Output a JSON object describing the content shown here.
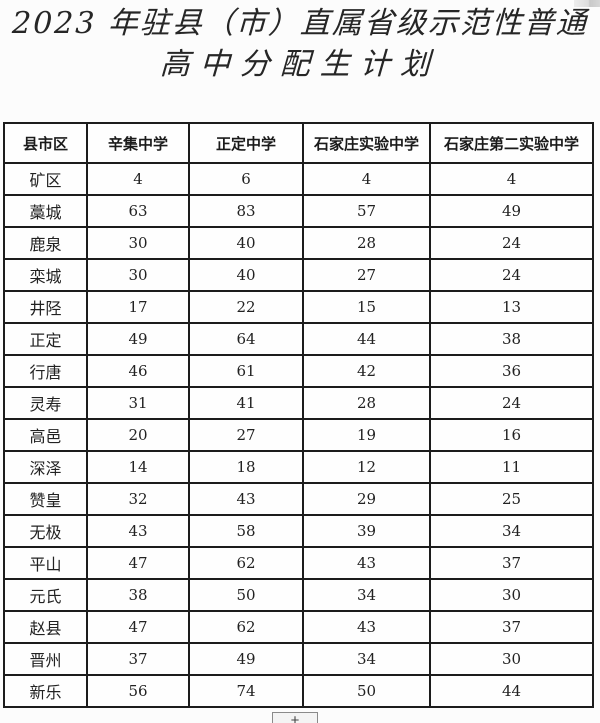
{
  "title": {
    "line1": "2023 年驻县（市）直属省级示范性普通",
    "line2": "高中分配生计划"
  },
  "table": {
    "columns": [
      "县市区",
      "辛集中学",
      "正定中学",
      "石家庄实验中学",
      "石家庄第二实验中学"
    ],
    "rows": [
      {
        "district": "矿区",
        "values": [
          4,
          6,
          4,
          4
        ]
      },
      {
        "district": "藁城",
        "values": [
          63,
          83,
          57,
          49
        ]
      },
      {
        "district": "鹿泉",
        "values": [
          30,
          40,
          28,
          24
        ]
      },
      {
        "district": "栾城",
        "values": [
          30,
          40,
          27,
          24
        ]
      },
      {
        "district": "井陉",
        "values": [
          17,
          22,
          15,
          13
        ]
      },
      {
        "district": "正定",
        "values": [
          49,
          64,
          44,
          38
        ]
      },
      {
        "district": "行唐",
        "values": [
          46,
          61,
          42,
          36
        ]
      },
      {
        "district": "灵寿",
        "values": [
          31,
          41,
          28,
          24
        ]
      },
      {
        "district": "高邑",
        "values": [
          20,
          27,
          19,
          16
        ]
      },
      {
        "district": "深泽",
        "values": [
          14,
          18,
          12,
          11
        ]
      },
      {
        "district": "赞皇",
        "values": [
          32,
          43,
          29,
          25
        ]
      },
      {
        "district": "无极",
        "values": [
          43,
          58,
          39,
          34
        ]
      },
      {
        "district": "平山",
        "values": [
          47,
          62,
          43,
          37
        ]
      },
      {
        "district": "元氏",
        "values": [
          38,
          50,
          34,
          30
        ]
      },
      {
        "district": "赵县",
        "values": [
          47,
          62,
          43,
          37
        ]
      },
      {
        "district": "晋州",
        "values": [
          37,
          49,
          34,
          30
        ]
      },
      {
        "district": "新乐",
        "values": [
          56,
          74,
          50,
          44
        ]
      }
    ]
  },
  "page_controls": {
    "zoom_in_label": "+"
  },
  "colors": {
    "border": "#1c1c1c",
    "text": "#222222",
    "background": "#fcfcfc"
  }
}
